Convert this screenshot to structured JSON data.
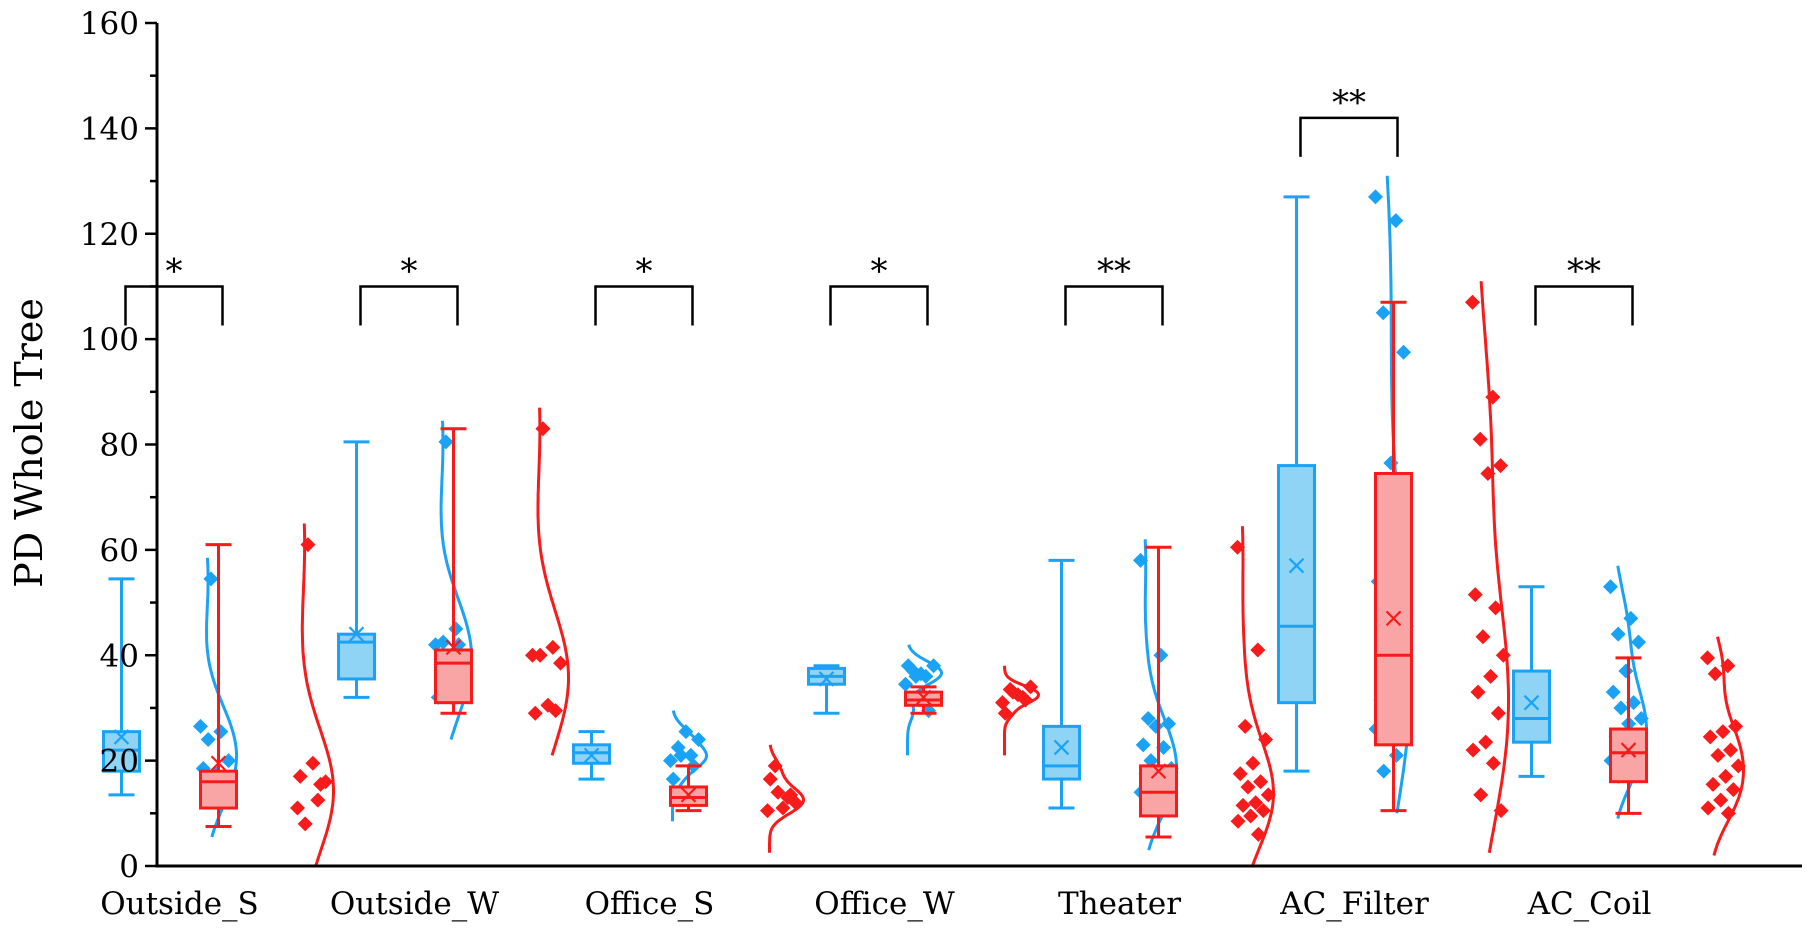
{
  "chart_data": {
    "type": "box",
    "title": "",
    "xlabel": "",
    "ylabel": "PD Whole Tree",
    "ylim": [
      0,
      160
    ],
    "yticks": [
      0,
      20,
      40,
      60,
      80,
      100,
      120,
      140,
      160
    ],
    "grid": false,
    "legend": "none",
    "colors": {
      "blue": "#1aa3f5",
      "blue_fill": "#8fd4f5",
      "red": "#f71b1b",
      "red_fill": "#f9a5a5",
      "axis": "#000000"
    },
    "categories": [
      "Outside_S",
      "Outside_W",
      "Office_S",
      "Office_W",
      "Theater",
      "AC_Filter",
      "AC_Coil"
    ],
    "groups": [
      {
        "category": "Outside_S",
        "significance": "*",
        "blue": {
          "whisker_low": 13.5,
          "q1": 18,
          "median": 22,
          "q3": 25.5,
          "whisker_high": 54.5,
          "mean": 24.5,
          "points": [
            26.5,
            25.5,
            24,
            20,
            17.5,
            18.5,
            13.5,
            54.5
          ]
        },
        "red": {
          "whisker_low": 7.5,
          "q1": 11,
          "median": 16,
          "q3": 18,
          "whisker_high": 61,
          "mean": 19.5,
          "points": [
            11,
            12.5,
            8,
            16,
            19.5,
            17,
            15.5,
            61
          ]
        }
      },
      {
        "category": "Outside_W",
        "significance": "*",
        "blue": {
          "whisker_low": 32,
          "q1": 35.5,
          "median": 42.5,
          "q3": 44,
          "whisker_high": 80.5,
          "mean": 44,
          "points": [
            42,
            45,
            42.5,
            39,
            32,
            32,
            42,
            80.5
          ]
        },
        "red": {
          "whisker_low": 29,
          "q1": 31,
          "median": 38.5,
          "q3": 41,
          "whisker_high": 83,
          "mean": 41.5,
          "points": [
            40,
            41.5,
            40,
            38.5,
            30.5,
            29,
            29.5,
            83
          ]
        }
      },
      {
        "category": "Office_S",
        "significance": "*",
        "blue": {
          "whisker_low": 16.5,
          "q1": 19.5,
          "median": 21.5,
          "q3": 23,
          "whisker_high": 25.5,
          "mean": 21,
          "points": [
            20,
            21,
            22.5,
            24,
            25.5,
            16.5,
            19,
            21
          ]
        },
        "red": {
          "whisker_low": 10.5,
          "q1": 11.5,
          "median": 13,
          "q3": 15,
          "whisker_high": 19,
          "mean": 13.5,
          "points": [
            10.5,
            13,
            19,
            12,
            11,
            16.5,
            13.5,
            14
          ]
        }
      },
      {
        "category": "Office_W",
        "significance": "*",
        "blue": {
          "whisker_low": 29,
          "q1": 34.5,
          "median": 36,
          "q3": 37.5,
          "whisker_high": 38,
          "mean": 35.5,
          "points": [
            34.5,
            36,
            37,
            38,
            36.5,
            38,
            29.5,
            36
          ]
        },
        "red": {
          "whisker_low": 29,
          "q1": 30.5,
          "median": 31.5,
          "q3": 33,
          "whisker_high": 34,
          "mean": 32,
          "points": [
            31,
            32,
            33.5,
            34,
            32.5,
            29,
            31.5,
            33
          ]
        }
      },
      {
        "category": "Theater",
        "significance": "**",
        "blue": {
          "whisker_low": 11,
          "q1": 16.5,
          "median": 19,
          "q3": 26.5,
          "whisker_high": 58,
          "mean": 22.5,
          "points": [
            58,
            40,
            28,
            27,
            26.5,
            23,
            22.5,
            20,
            18.5,
            18,
            17.5,
            16,
            15,
            14,
            12,
            11.5
          ]
        },
        "red": {
          "whisker_low": 5.5,
          "q1": 9.5,
          "median": 14,
          "q3": 19,
          "whisker_high": 60.5,
          "mean": 18,
          "points": [
            60.5,
            41,
            26.5,
            24,
            19.5,
            17.5,
            16,
            15,
            13.5,
            12,
            11.5,
            10.5,
            9.5,
            8.5,
            6
          ]
        }
      },
      {
        "category": "AC_Filter",
        "significance": "**",
        "blue": {
          "whisker_low": 18,
          "q1": 31,
          "median": 45.5,
          "q3": 76,
          "whisker_high": 127,
          "mean": 57,
          "points": [
            127,
            122.5,
            105,
            97.5,
            76.5,
            54,
            53,
            49,
            45.5,
            44.5,
            31.5,
            31,
            28,
            26,
            21,
            18
          ]
        },
        "red": {
          "whisker_low": 10.5,
          "q1": 23,
          "median": 40,
          "q3": 74.5,
          "whisker_high": 107,
          "mean": 47,
          "points": [
            107,
            89,
            81,
            76,
            74.5,
            51.5,
            49,
            43.5,
            40,
            36,
            33,
            29,
            23.5,
            22,
            19.5,
            13.5,
            10.5
          ]
        }
      },
      {
        "category": "AC_Coil",
        "significance": "**",
        "blue": {
          "whisker_low": 17,
          "q1": 23.5,
          "median": 28,
          "q3": 37,
          "whisker_high": 53,
          "mean": 31,
          "points": [
            53,
            47,
            44,
            42.5,
            37,
            33,
            31,
            30,
            28,
            27,
            24.5,
            23.5,
            22.5,
            20,
            18,
            17
          ]
        },
        "red": {
          "whisker_low": 10,
          "q1": 16,
          "median": 21.5,
          "q3": 26,
          "whisker_high": 39.5,
          "mean": 22,
          "points": [
            39.5,
            38,
            36.5,
            26.5,
            25.5,
            24.5,
            22,
            21,
            19,
            17,
            15.5,
            14.5,
            12.5,
            11,
            10
          ]
        }
      }
    ]
  }
}
